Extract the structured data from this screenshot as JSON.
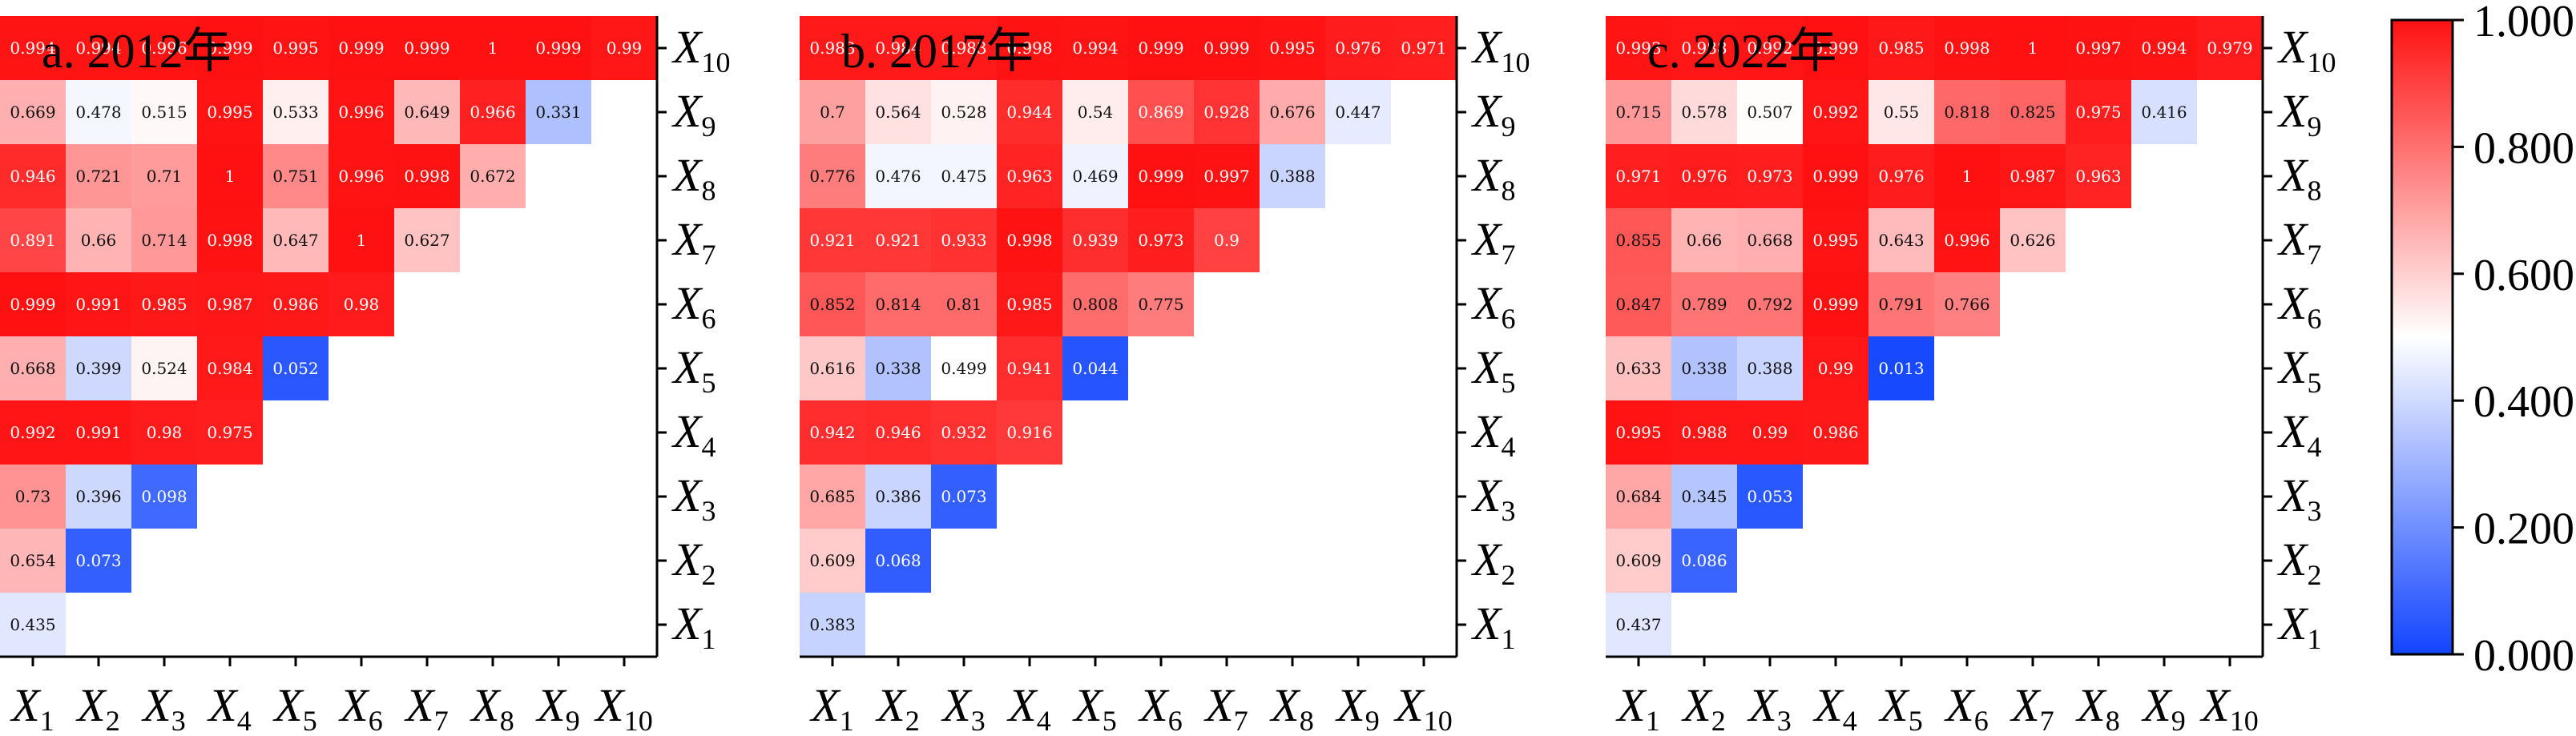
{
  "chart_data": {
    "type": "heatmap",
    "layout": "lower-triangular",
    "variables": [
      "X1",
      "X2",
      "X3",
      "X4",
      "X5",
      "X6",
      "X7",
      "X8",
      "X9",
      "X10"
    ],
    "color_scale": {
      "low": "#1144ff",
      "mid": "#ffffff",
      "high": "#ff1111",
      "min": 0.0,
      "max": 1.0,
      "mid_value": 0.5
    },
    "colorbar": {
      "ticks": [
        "0.000",
        "0.200",
        "0.400",
        "0.600",
        "0.800",
        "1.000"
      ],
      "tick_values": [
        0,
        0.2,
        0.4,
        0.6,
        0.8,
        1.0
      ]
    },
    "panels": [
      {
        "title": "a. 2012年",
        "rows": [
          [
            0.435
          ],
          [
            0.654,
            0.073
          ],
          [
            0.73,
            0.396,
            0.098
          ],
          [
            0.992,
            0.991,
            0.98,
            0.975
          ],
          [
            0.668,
            0.399,
            0.524,
            0.984,
            0.052
          ],
          [
            0.999,
            0.991,
            0.985,
            0.987,
            0.986,
            0.98
          ],
          [
            0.891,
            0.66,
            0.714,
            0.998,
            0.647,
            1,
            0.627
          ],
          [
            0.946,
            0.721,
            0.71,
            1,
            0.751,
            0.996,
            0.998,
            0.672
          ],
          [
            0.669,
            0.478,
            0.515,
            0.995,
            0.533,
            0.996,
            0.649,
            0.966,
            0.331
          ],
          [
            0.994,
            0.994,
            0.996,
            0.999,
            0.995,
            0.999,
            0.999,
            1,
            0.999,
            0.99
          ]
        ]
      },
      {
        "title": "b. 2017年",
        "rows": [
          [
            0.383
          ],
          [
            0.609,
            0.068
          ],
          [
            0.685,
            0.386,
            0.073
          ],
          [
            0.942,
            0.946,
            0.932,
            0.916
          ],
          [
            0.616,
            0.338,
            0.499,
            0.941,
            0.044
          ],
          [
            0.852,
            0.814,
            0.81,
            0.985,
            0.808,
            0.775
          ],
          [
            0.921,
            0.921,
            0.933,
            0.998,
            0.939,
            0.973,
            0.9
          ],
          [
            0.776,
            0.476,
            0.475,
            0.963,
            0.469,
            0.999,
            0.997,
            0.388
          ],
          [
            0.7,
            0.564,
            0.528,
            0.944,
            0.54,
            0.869,
            0.928,
            0.676,
            0.447
          ],
          [
            0.983,
            0.984,
            0.983,
            0.998,
            0.994,
            0.999,
            0.999,
            0.995,
            0.976,
            0.971
          ]
        ]
      },
      {
        "title": "c. 2022年",
        "rows": [
          [
            0.437
          ],
          [
            0.609,
            0.086
          ],
          [
            0.684,
            0.345,
            0.053
          ],
          [
            0.995,
            0.988,
            0.99,
            0.986
          ],
          [
            0.633,
            0.338,
            0.388,
            0.99,
            0.013
          ],
          [
            0.847,
            0.789,
            0.792,
            0.999,
            0.791,
            0.766
          ],
          [
            0.855,
            0.66,
            0.668,
            0.995,
            0.643,
            0.996,
            0.626
          ],
          [
            0.971,
            0.976,
            0.973,
            0.999,
            0.976,
            1,
            0.987,
            0.963
          ],
          [
            0.715,
            0.578,
            0.507,
            0.992,
            0.55,
            0.818,
            0.825,
            0.975,
            0.416
          ],
          [
            0.993,
            0.988,
            0.992,
            0.999,
            0.985,
            0.998,
            1,
            0.997,
            0.994,
            0.979
          ]
        ]
      }
    ]
  }
}
